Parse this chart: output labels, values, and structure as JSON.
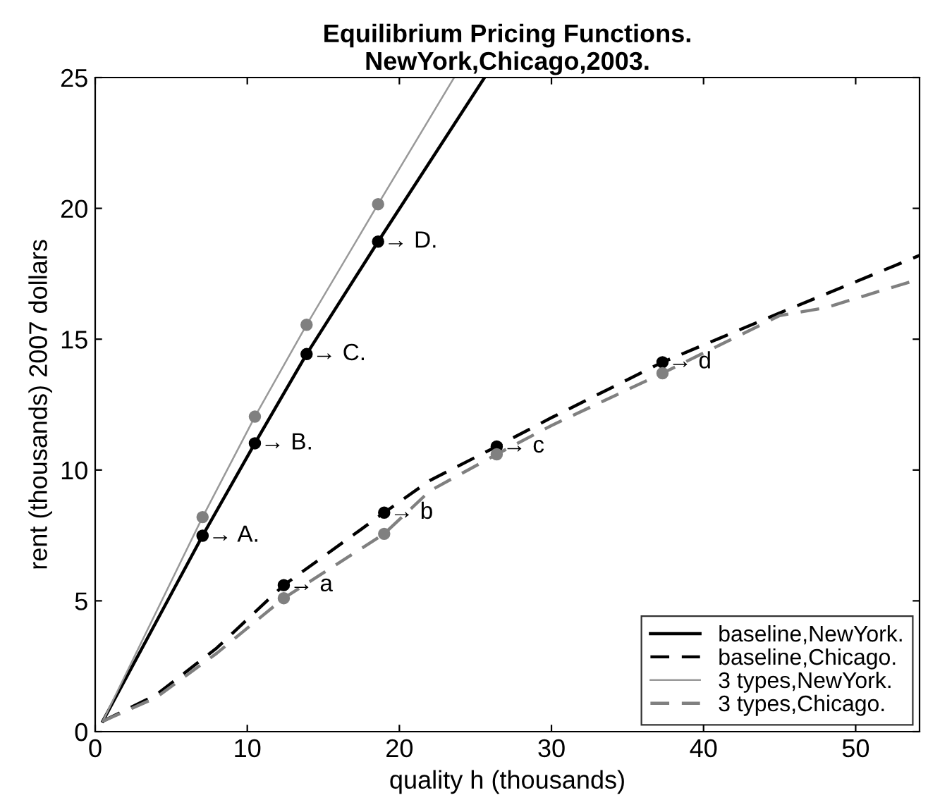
{
  "chart_data": {
    "type": "line",
    "title": "Equilibrium Pricing Functions.\nNewYork,Chicago,2003.",
    "xlabel": "quality h (thousands)",
    "ylabel": "rent (thousands) 2007 dollars",
    "xlim": [
      0,
      54.2
    ],
    "ylim": [
      0,
      25
    ],
    "xticks": [
      0,
      10,
      20,
      30,
      40,
      50
    ],
    "yticks": [
      0,
      5,
      10,
      15,
      20,
      25
    ],
    "grid": false,
    "legend": "bottom right",
    "series": [
      {
        "name": "baseline,NewYork.",
        "color": "#000000",
        "line_style": "solid",
        "x": [
          0.5,
          7.06,
          10.5,
          13.9,
          18.6,
          25.6
        ],
        "values": [
          0.4,
          7.49,
          11.02,
          14.43,
          18.73,
          25
        ]
      },
      {
        "name": "baseline,Chicago.",
        "color": "#000000",
        "line_style": "dashed",
        "x": [
          0.5,
          4,
          8,
          12.4,
          19,
          22,
          26.4,
          30,
          37.3,
          45,
          54.2
        ],
        "values": [
          0.4,
          1.4,
          3.2,
          5.6,
          8.37,
          9.6,
          10.9,
          12.0,
          14.12,
          16.0,
          18.2
        ]
      },
      {
        "name": "3 types,NewYork.",
        "color": "#999999",
        "line_style": "solid",
        "x": [
          0.5,
          7.06,
          10.5,
          13.9,
          18.6,
          23.6
        ],
        "values": [
          0.4,
          8.2,
          12.04,
          15.55,
          20.16,
          25
        ]
      },
      {
        "name": "3 types,Chicago.",
        "color": "#808080",
        "line_style": "dashed",
        "x": [
          0.5,
          4,
          8,
          12.4,
          19,
          22,
          26.4,
          30,
          37.3,
          45,
          48,
          54.2
        ],
        "values": [
          0.4,
          1.3,
          3.0,
          5.1,
          7.56,
          9.2,
          10.6,
          11.7,
          13.7,
          15.9,
          16.2,
          17.3
        ]
      },
      {
        "type": "scatter",
        "color": "#000000",
        "marker": "circle",
        "x": [
          7.06,
          10.5,
          13.9,
          18.6,
          12.4,
          19,
          26.4,
          37.3
        ],
        "values": [
          7.49,
          11.02,
          14.43,
          18.73,
          5.6,
          8.37,
          10.9,
          14.12
        ]
      },
      {
        "type": "scatter",
        "color": "#808080",
        "marker": "circle",
        "x": [
          7.06,
          10.5,
          13.9,
          18.6,
          12.4,
          19,
          26.4,
          37.3
        ],
        "values": [
          8.2,
          12.04,
          15.55,
          20.16,
          5.1,
          7.56,
          10.6,
          13.7
        ]
      }
    ],
    "annotations": [
      {
        "text": "→ A.",
        "x": 7.06,
        "y": 7.49
      },
      {
        "text": "→ B.",
        "x": 10.5,
        "y": 11.02
      },
      {
        "text": "→ C.",
        "x": 13.9,
        "y": 14.43
      },
      {
        "text": "→ D.",
        "x": 18.6,
        "y": 18.73
      },
      {
        "text": "→ a",
        "x": 12.4,
        "y": 5.6
      },
      {
        "text": "→ b",
        "x": 19,
        "y": 8.37
      },
      {
        "text": "→ c",
        "x": 26.4,
        "y": 10.9
      },
      {
        "text": "→ d",
        "x": 37.3,
        "y": 14.12
      }
    ]
  }
}
